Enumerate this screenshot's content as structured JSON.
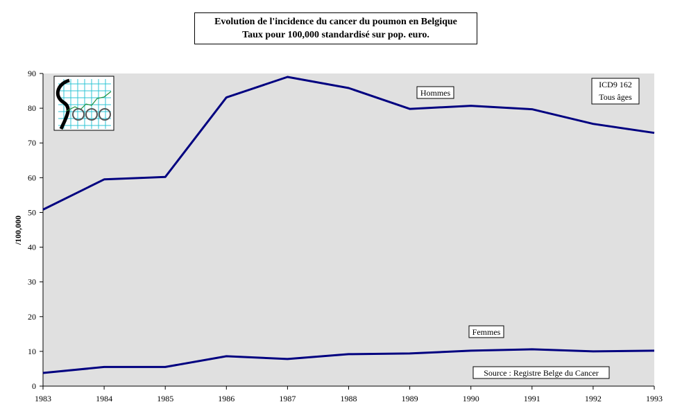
{
  "chart_data": {
    "type": "line",
    "title": "Evolution de l'incidence du cancer du poumon  en Belgique",
    "subtitle": "Taux pour 100,000  standardisé sur pop. euro.",
    "ylabel": "/100,000",
    "xlabel": "",
    "x": [
      "1983",
      "1984",
      "1985",
      "1986",
      "1987",
      "1988",
      "1989",
      "1990",
      "1991",
      "1992",
      "1993"
    ],
    "yticks": [
      "0",
      "10",
      "20",
      "30",
      "40",
      "50",
      "60",
      "70",
      "80",
      "90"
    ],
    "ylim": [
      0,
      90
    ],
    "grid": false,
    "plot_background": "#e0e0e0",
    "line_color": "#000080",
    "series": [
      {
        "name": "Hommes",
        "values": [
          50.8,
          59.5,
          60.2,
          83.1,
          89.0,
          85.8,
          79.8,
          80.7,
          79.7,
          75.5,
          72.9
        ]
      },
      {
        "name": "Femmes",
        "values": [
          3.8,
          5.5,
          5.5,
          8.6,
          7.8,
          9.2,
          9.4,
          10.2,
          10.6,
          10.0,
          10.2
        ]
      }
    ],
    "annotations": {
      "code": "ICD9   162",
      "ages": "Tous âges",
      "source": "Source : Registre Belge  du  Cancer"
    }
  }
}
